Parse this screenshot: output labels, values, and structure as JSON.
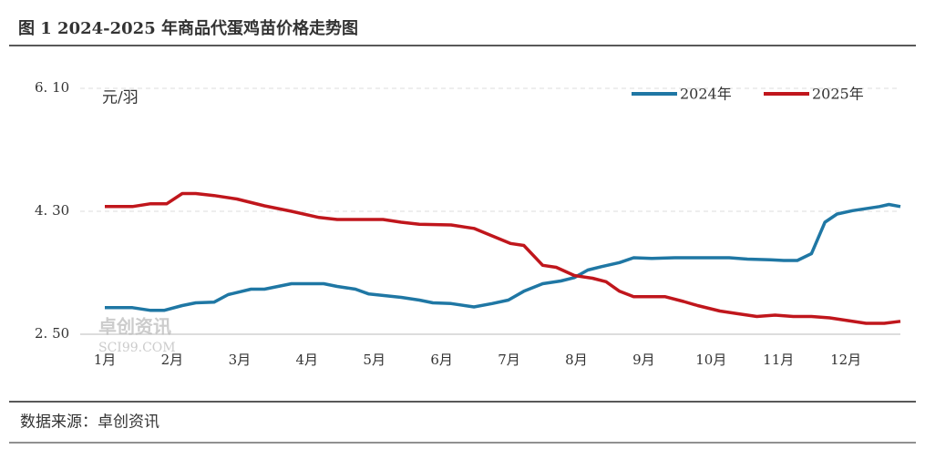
{
  "chart_data": {
    "type": "line",
    "title": "图 1 2024-2025 年商品代蛋鸡苗价格走势图",
    "y_label": "元/羽",
    "source": "数据来源：卓创资讯",
    "watermark": [
      "卓创资讯",
      "SCI99.COM"
    ],
    "xlim": [
      1,
      12.81
    ],
    "xticks": [
      {
        "value": 1,
        "label": "1月"
      },
      {
        "value": 2,
        "label": "2月"
      },
      {
        "value": 3,
        "label": "3月"
      },
      {
        "value": 4,
        "label": "4月"
      },
      {
        "value": 5,
        "label": "5月"
      },
      {
        "value": 6,
        "label": "6月"
      },
      {
        "value": 7,
        "label": "7月"
      },
      {
        "value": 8,
        "label": "8月"
      },
      {
        "value": 9,
        "label": "9月"
      },
      {
        "value": 10,
        "label": "10月"
      },
      {
        "value": 11,
        "label": "11月"
      },
      {
        "value": 12,
        "label": "12月"
      }
    ],
    "ylim": [
      2.5,
      6.1
    ],
    "yticks": [
      {
        "value": 2.5,
        "label": "2. 50"
      },
      {
        "value": 4.3,
        "label": "4. 30"
      },
      {
        "value": 6.1,
        "label": "6. 10"
      }
    ],
    "grid": true,
    "legend": "top-right",
    "series": [
      {
        "name": "2024年",
        "color": "#1f77a4",
        "x": [
          1.0,
          1.41,
          1.68,
          1.88,
          2.15,
          2.35,
          2.62,
          2.83,
          3.17,
          3.37,
          3.57,
          3.77,
          4.25,
          4.45,
          4.72,
          4.92,
          5.4,
          5.67,
          5.87,
          6.14,
          6.48,
          6.75,
          6.99,
          7.22,
          7.5,
          7.77,
          7.97,
          8.17,
          8.37,
          8.64,
          8.85,
          9.12,
          9.46,
          10.27,
          10.54,
          10.88,
          11.08,
          11.28,
          11.49,
          11.69,
          11.87,
          12.1,
          12.5,
          12.64,
          12.81
        ],
        "values": [
          2.89,
          2.89,
          2.85,
          2.85,
          2.92,
          2.96,
          2.97,
          3.08,
          3.16,
          3.16,
          3.2,
          3.24,
          3.24,
          3.2,
          3.16,
          3.09,
          3.04,
          3.0,
          2.96,
          2.95,
          2.9,
          2.95,
          3.0,
          3.13,
          3.24,
          3.28,
          3.33,
          3.44,
          3.49,
          3.55,
          3.62,
          3.61,
          3.62,
          3.62,
          3.6,
          3.59,
          3.58,
          3.58,
          3.68,
          4.14,
          4.26,
          4.31,
          4.37,
          4.4,
          4.37
        ]
      },
      {
        "name": "2025年",
        "color": "#c0161c",
        "x": [
          1.0,
          1.41,
          1.68,
          1.92,
          2.15,
          2.35,
          2.62,
          2.96,
          3.37,
          3.77,
          4.18,
          4.45,
          5.13,
          5.4,
          5.67,
          6.14,
          6.48,
          6.75,
          7.02,
          7.22,
          7.5,
          7.7,
          7.97,
          8.24,
          8.44,
          8.64,
          8.85,
          9.32,
          9.59,
          9.8,
          10.13,
          10.4,
          10.68,
          10.95,
          11.22,
          11.49,
          11.76,
          12.03,
          12.3,
          12.57,
          12.81
        ],
        "values": [
          4.37,
          4.37,
          4.41,
          4.41,
          4.56,
          4.56,
          4.53,
          4.48,
          4.38,
          4.3,
          4.21,
          4.18,
          4.18,
          4.14,
          4.11,
          4.1,
          4.05,
          3.94,
          3.83,
          3.8,
          3.51,
          3.48,
          3.36,
          3.32,
          3.27,
          3.13,
          3.05,
          3.05,
          2.98,
          2.92,
          2.84,
          2.8,
          2.76,
          2.78,
          2.76,
          2.76,
          2.74,
          2.7,
          2.66,
          2.66,
          2.69
        ]
      }
    ]
  }
}
